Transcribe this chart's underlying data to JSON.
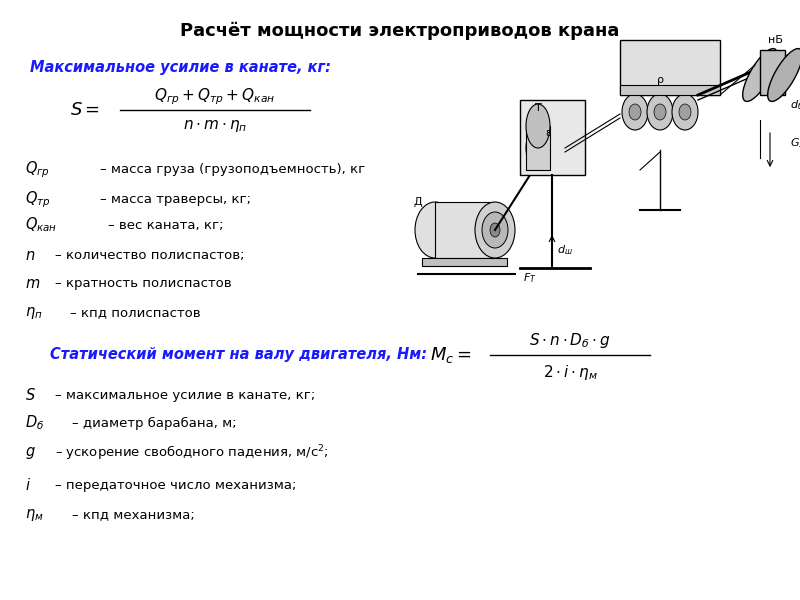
{
  "title": "Расчёт мощности электроприводов крана",
  "title_fontsize": 13,
  "bg_color": "#ffffff",
  "text_color": "#000000",
  "blue_color": "#1a1aff",
  "heading1": "Максимальное усилие в канате, кг:",
  "heading2": "Статический момент на валу двигателя, Нм:",
  "vars1": [
    [
      "$Q_{гр}$",
      "– масса груза (грузоподъемность), кг"
    ],
    [
      "$Q_{тр}$",
      "– масса траверсы, кг;"
    ],
    [
      "$Q_{кан}$",
      "– вес каната, кг;"
    ],
    [
      "$n$",
      "– количество полиспастов;"
    ],
    [
      "$m$",
      "– кратность полиспастов"
    ],
    [
      "$\\eta_{п}$",
      "– кпд полиспастов"
    ]
  ],
  "vars2": [
    [
      "$S$",
      "– максимальное усилие в канате, кг;"
    ],
    [
      "$D_{б}$",
      "– диаметр барабана, м;"
    ],
    [
      "$g$",
      "– ускорение свободного падения, м/с$^2$;"
    ],
    [
      "$i$",
      "– передаточное число механизма;"
    ],
    [
      "$\\eta_{м}$",
      "– кпд механизма;"
    ]
  ]
}
